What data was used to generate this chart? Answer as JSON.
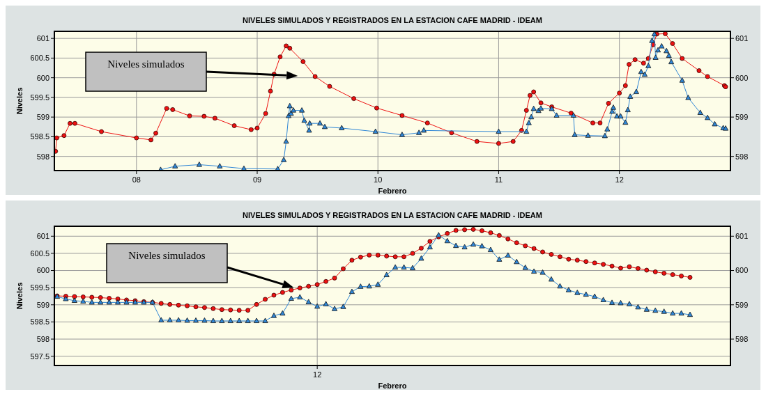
{
  "chart_data": [
    {
      "type": "line",
      "title": "NIVELES SIMULADOS Y REGISTRADOS EN LA ESTACION CAFE MADRID - IDEAM",
      "xlabel": "Febrero",
      "ylabel": "Niveles",
      "xlim": [
        7.32,
        12.92
      ],
      "xticks": [
        {
          "value": 8,
          "label": "08"
        },
        {
          "value": 9,
          "label": "09"
        },
        10,
        11,
        12
      ],
      "ylim": [
        597.64,
        601.18
      ],
      "yticks": [
        598,
        598.5,
        599,
        599.5,
        600,
        600.5,
        601
      ],
      "y2lim": [
        597.64,
        601.18
      ],
      "y2ticks": [
        598,
        599,
        600,
        601
      ],
      "grid": true,
      "line_style": "solid",
      "annotations": [
        "Niveles simulados"
      ],
      "series": [
        {
          "color": "#ee1111",
          "marker": "circle",
          "x": [
            7.33,
            7.34,
            7.4,
            7.45,
            7.49,
            7.71,
            8.0,
            8.12,
            8.16,
            8.25,
            8.3,
            8.44,
            8.56,
            8.65,
            8.81,
            8.95,
            9.0,
            9.07,
            9.11,
            9.14,
            9.19,
            9.24,
            9.27,
            9.38,
            9.48,
            9.6,
            9.8,
            9.99,
            10.2,
            10.41,
            10.61,
            10.82,
            11.0,
            11.12,
            11.19,
            11.23,
            11.26,
            11.29,
            11.35,
            11.44,
            11.6,
            11.78,
            11.84,
            11.91,
            12.0,
            12.05,
            12.08,
            12.13,
            12.2,
            12.24,
            12.28,
            12.31,
            12.38,
            12.44,
            12.52,
            12.66,
            12.73,
            12.87,
            12.88
          ],
          "values": [
            598.13,
            598.47,
            598.53,
            598.84,
            598.84,
            598.63,
            598.47,
            598.42,
            598.59,
            599.22,
            599.19,
            599.03,
            599.02,
            598.97,
            598.78,
            598.68,
            598.72,
            599.09,
            599.66,
            600.09,
            600.53,
            600.81,
            600.75,
            600.41,
            600.03,
            599.78,
            599.47,
            599.23,
            599.04,
            598.85,
            598.6,
            598.38,
            598.33,
            598.38,
            598.66,
            599.17,
            599.55,
            599.64,
            599.36,
            599.26,
            599.1,
            598.85,
            598.85,
            599.35,
            599.61,
            599.8,
            600.34,
            600.46,
            600.37,
            600.49,
            600.84,
            601.11,
            601.12,
            600.87,
            600.49,
            600.18,
            600.03,
            599.8,
            599.77
          ]
        },
        {
          "color": "#2f86d6",
          "marker": "triangle",
          "x": [
            8.2,
            8.32,
            8.52,
            8.69,
            8.89,
            9.17,
            9.22,
            9.24,
            9.26,
            9.27,
            9.28,
            9.3,
            9.37,
            9.39,
            9.43,
            9.435,
            9.52,
            9.56,
            9.7,
            9.98,
            10.2,
            10.34,
            10.38,
            11.0,
            11.23,
            11.25,
            11.27,
            11.29,
            11.33,
            11.35,
            11.44,
            11.48,
            11.62,
            11.63,
            11.74,
            11.88,
            11.9,
            11.94,
            11.95,
            11.98,
            12.01,
            12.05,
            12.07,
            12.09,
            12.14,
            12.18,
            12.21,
            12.24,
            12.27,
            12.29,
            12.3,
            12.32,
            12.35,
            12.39,
            12.41,
            12.43,
            12.52,
            12.57,
            12.67,
            12.73,
            12.79,
            12.86,
            12.88
          ],
          "values": [
            597.66,
            597.75,
            597.79,
            597.75,
            597.69,
            597.68,
            597.91,
            598.38,
            599.03,
            599.28,
            599.09,
            599.17,
            599.17,
            598.91,
            598.66,
            598.84,
            598.84,
            598.75,
            598.72,
            598.63,
            598.55,
            598.6,
            598.66,
            598.63,
            598.63,
            598.85,
            599.0,
            599.21,
            599.16,
            599.22,
            599.21,
            599.04,
            599.04,
            598.55,
            598.53,
            598.52,
            598.69,
            599.14,
            599.24,
            599.02,
            599.02,
            598.86,
            599.18,
            599.52,
            599.64,
            600.15,
            600.08,
            600.3,
            600.94,
            601.11,
            600.51,
            600.7,
            600.8,
            600.68,
            600.56,
            600.4,
            599.93,
            599.49,
            599.11,
            598.98,
            598.82,
            598.72,
            598.71
          ]
        }
      ]
    },
    {
      "type": "line",
      "title": "NIVELES SIMULADOS Y REGISTRADOS EN LA ESTACION CAFE MADRID - IDEAM",
      "xlabel": "Febrero",
      "ylabel": "Niveles",
      "ylim": [
        597.23,
        601.29
      ],
      "yticks": [
        597.5,
        598,
        598.5,
        599,
        599.5,
        600,
        600.5,
        601
      ],
      "y2lim": [
        597.23,
        601.29
      ],
      "y2ticks": [
        598,
        599,
        600,
        601
      ],
      "grid": true,
      "line_style": "solid",
      "categories": [
        null,
        null,
        null,
        null,
        null,
        null,
        null,
        null,
        null,
        null,
        null,
        null,
        null,
        null,
        null,
        null,
        null,
        null,
        null,
        null,
        null,
        null,
        null,
        null,
        null,
        null,
        null,
        null,
        null,
        null,
        "12",
        null,
        null,
        null,
        null,
        null,
        null,
        null,
        null,
        null,
        null,
        null,
        null,
        null,
        null,
        null,
        null,
        null,
        null,
        null,
        null,
        null,
        null,
        null,
        null,
        null,
        null,
        null,
        null,
        null,
        null,
        null,
        null,
        null,
        null,
        null,
        null,
        null,
        null,
        null,
        null,
        null,
        null,
        null
      ],
      "annotations": [
        "Niveles simulados"
      ],
      "series": [
        {
          "color": "#ee1111",
          "marker": "circle",
          "values": [
            599.26,
            599.25,
            599.24,
            599.23,
            599.22,
            599.21,
            599.19,
            599.17,
            599.14,
            599.12,
            599.09,
            599.07,
            599.04,
            599.01,
            598.99,
            598.97,
            598.94,
            598.92,
            598.89,
            598.86,
            598.85,
            598.84,
            598.84,
            599.01,
            599.16,
            599.28,
            599.36,
            599.43,
            599.49,
            599.54,
            599.59,
            599.68,
            599.78,
            600.05,
            600.3,
            600.39,
            600.45,
            600.45,
            600.42,
            600.4,
            600.4,
            600.5,
            600.65,
            600.85,
            600.98,
            601.08,
            601.17,
            601.19,
            601.2,
            601.16,
            601.1,
            601.02,
            600.92,
            600.81,
            600.72,
            600.64,
            600.54,
            600.47,
            600.4,
            600.33,
            600.3,
            600.26,
            600.22,
            600.18,
            600.13,
            600.07,
            600.11,
            600.06,
            600.01,
            599.96,
            599.92,
            599.88,
            599.84,
            599.8
          ]
        },
        {
          "color": "#2f86d6",
          "marker": "triangle",
          "values": [
            599.24,
            599.17,
            599.12,
            599.1,
            599.07,
            599.07,
            599.07,
            599.07,
            599.07,
            599.07,
            599.07,
            599.07,
            598.55,
            598.55,
            598.55,
            598.54,
            598.54,
            598.54,
            598.53,
            598.53,
            598.53,
            598.53,
            598.53,
            598.53,
            598.53,
            598.68,
            598.75,
            599.18,
            599.22,
            599.08,
            598.95,
            599.02,
            598.88,
            598.94,
            599.38,
            599.53,
            599.54,
            599.59,
            599.87,
            600.09,
            600.09,
            600.07,
            600.35,
            600.68,
            601.03,
            600.86,
            600.72,
            600.68,
            600.76,
            600.71,
            600.6,
            600.32,
            600.44,
            600.25,
            600.08,
            599.97,
            599.94,
            599.74,
            599.54,
            599.43,
            599.35,
            599.3,
            599.24,
            599.14,
            599.06,
            599.05,
            599.02,
            598.93,
            598.86,
            598.83,
            598.8,
            598.75,
            598.75,
            598.71
          ]
        }
      ]
    }
  ]
}
